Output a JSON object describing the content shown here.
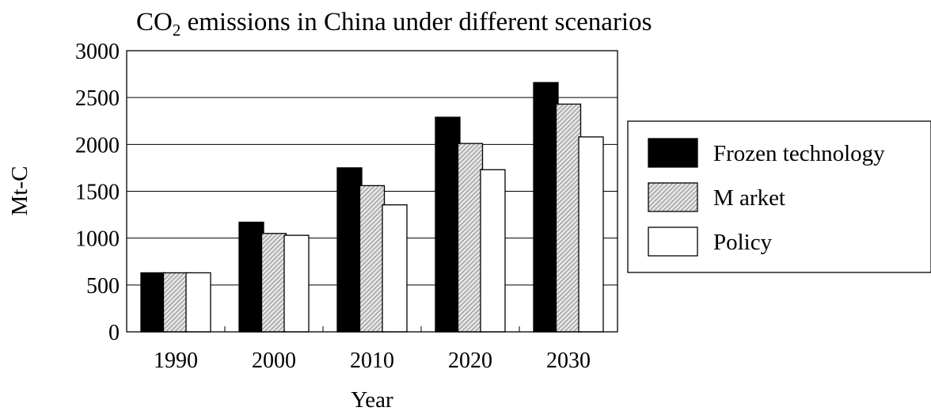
{
  "chart_data": {
    "type": "bar",
    "title_main": "CO",
    "title_sub": "2",
    "title_rest": " emissions in China under different scenarios",
    "xlabel": "Year",
    "ylabel": "Mt-C",
    "ylim": [
      0,
      3000
    ],
    "yticks": [
      "0",
      "500",
      "1000",
      "1500",
      "2000",
      "2500",
      "3000"
    ],
    "ytick_values": [
      0,
      500,
      1000,
      1500,
      2000,
      2500,
      3000
    ],
    "categories": [
      "1990",
      "2000",
      "2010",
      "2020",
      "2030"
    ],
    "grid": "horizontal",
    "legend_position": "right",
    "series": [
      {
        "name": "Frozen technology",
        "key": "frozen",
        "fill": "#000000",
        "values": [
          630,
          1170,
          1750,
          2290,
          2660
        ]
      },
      {
        "name": "M arket",
        "key": "market",
        "fill": "hatch",
        "values": [
          630,
          1050,
          1560,
          2010,
          2430
        ]
      },
      {
        "name": "Policy",
        "key": "policy",
        "fill": "#ffffff",
        "values": [
          630,
          1030,
          1355,
          1730,
          2080
        ]
      }
    ]
  }
}
